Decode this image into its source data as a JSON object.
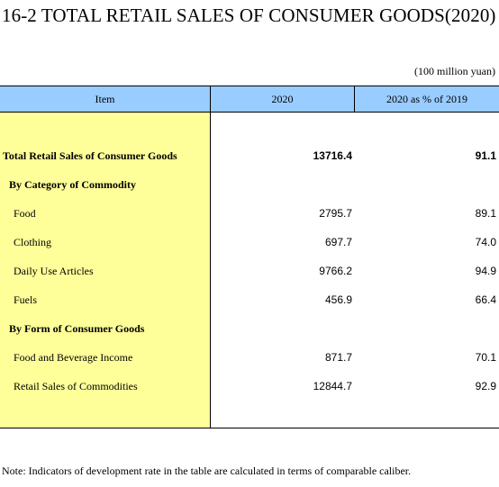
{
  "title": "16-2  TOTAL RETAIL SALES OF CONSUMER GOODS(2020)",
  "unit": "(100 million yuan)",
  "columns": {
    "item": "Item",
    "year": "2020",
    "pct": "2020 as % of 2019"
  },
  "rows": [
    {
      "name": "Total Retail Sales of Consumer Goods",
      "v2020": "13716.4",
      "pct": "91.1"
    },
    {
      "name": "By Category of Commodity",
      "v2020": "",
      "pct": ""
    },
    {
      "name": "Food",
      "v2020": "2795.7",
      "pct": "89.1"
    },
    {
      "name": "Clothing",
      "v2020": "697.7",
      "pct": "74.0"
    },
    {
      "name": "Daily Use Articles",
      "v2020": "9766.2",
      "pct": "94.9"
    },
    {
      "name": "Fuels",
      "v2020": "456.9",
      "pct": "66.4"
    },
    {
      "name": "By Form of Consumer Goods",
      "v2020": "",
      "pct": ""
    },
    {
      "name": "Food and Beverage Income",
      "v2020": "871.7",
      "pct": "70.1"
    },
    {
      "name": "Retail Sales of Commodities",
      "v2020": "12844.7",
      "pct": "92.9"
    }
  ],
  "note": "Note: Indicators of development rate in the table are calculated in terms of comparable caliber."
}
